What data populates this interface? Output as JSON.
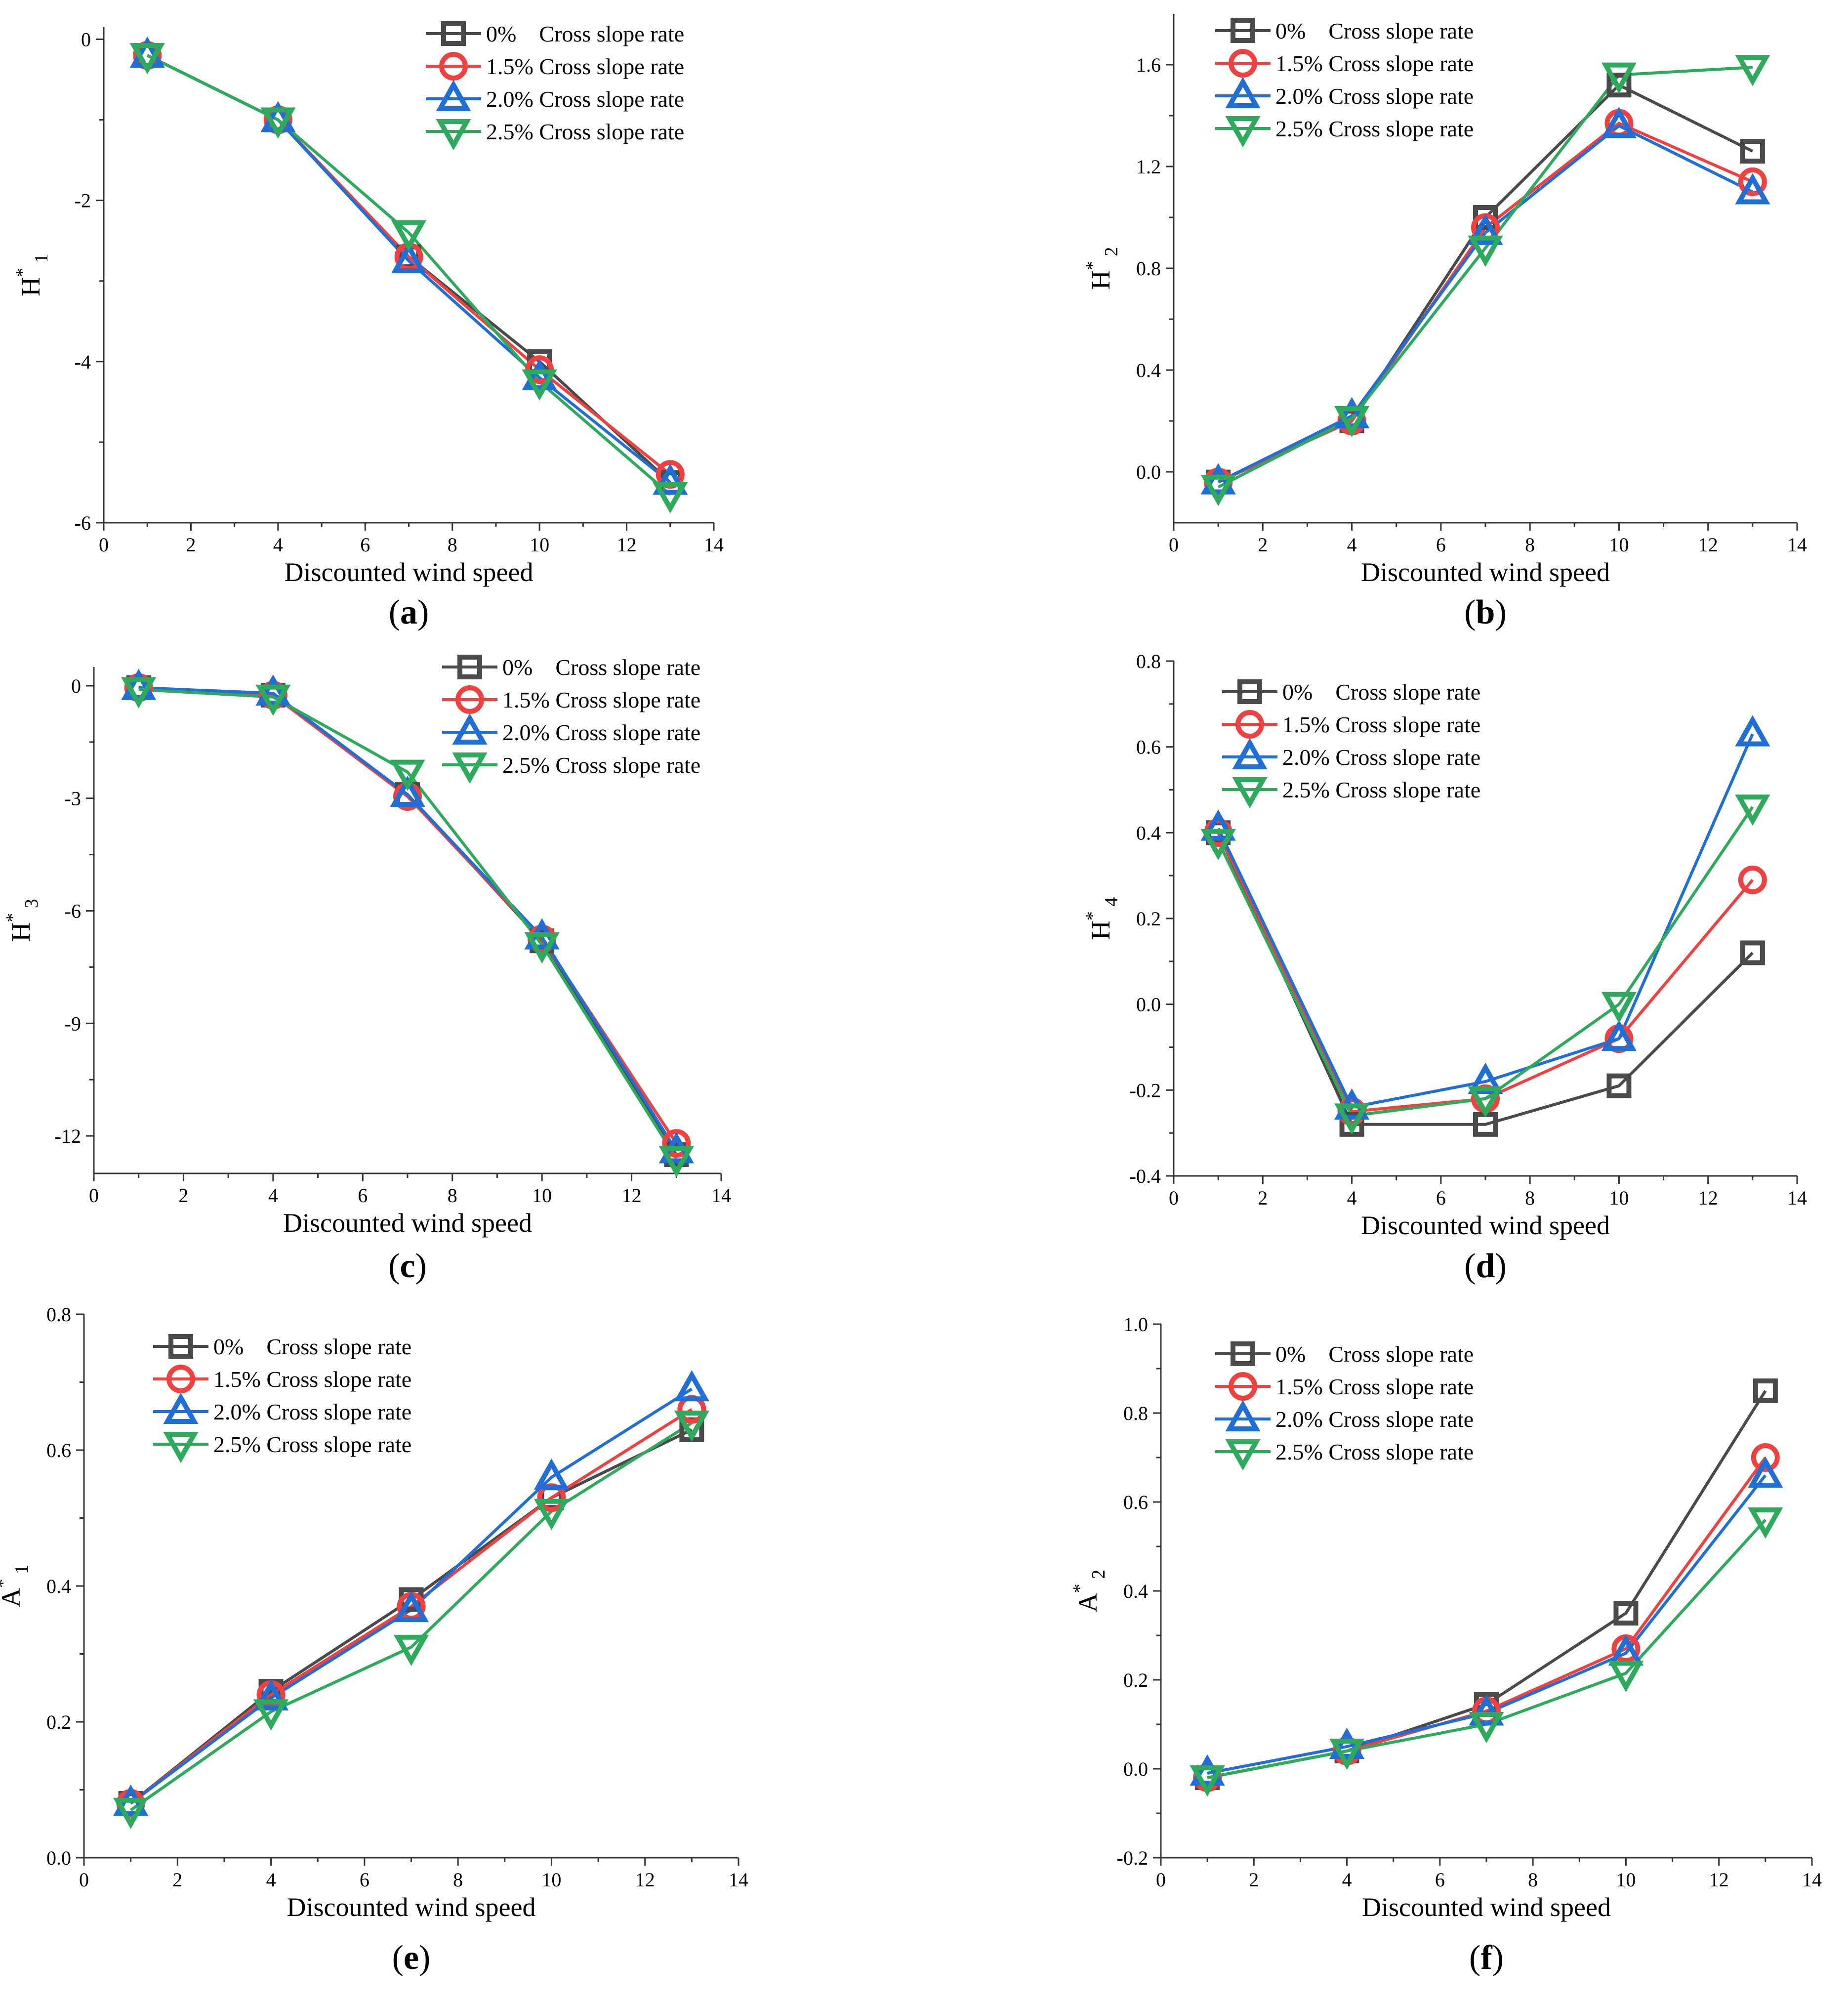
{
  "figure": {
    "series_styles": [
      {
        "name": "0%",
        "color": "#4a4a4a",
        "marker": "square"
      },
      {
        "name": "1.5%",
        "color": "#f04040",
        "marker": "circle"
      },
      {
        "name": "2.0%",
        "color": "#1f6fd6",
        "marker": "triangle-up"
      },
      {
        "name": "2.5%",
        "color": "#2eaa5c",
        "marker": "triangle-down"
      }
    ]
  },
  "chart_data": [
    {
      "type": "line",
      "caption_letter": "a",
      "xlabel": "Discounted wind speed",
      "ylabel_main": "H",
      "ylabel_sup": "*",
      "ylabel_sub": "1",
      "xlim": [
        0,
        14
      ],
      "ylim": [
        -6,
        0.15
      ],
      "xticks": [
        0,
        2,
        4,
        6,
        8,
        10,
        12,
        14
      ],
      "xtick_labels": [
        "0",
        "2",
        "4",
        "6",
        "8",
        "10",
        "12",
        "14"
      ],
      "yticks": [
        -6,
        -4,
        -2,
        0
      ],
      "ytick_labels": [
        "-6",
        "-4",
        "-2",
        "0"
      ],
      "legend": [
        "0%    Cross slope rate",
        "1.5% Cross slope rate",
        "2.0% Cross slope rate",
        "2.5% Cross slope rate"
      ],
      "x": [
        1,
        4,
        7,
        10,
        13
      ],
      "series": [
        {
          "name": "0%",
          "values": [
            -0.2,
            -1.0,
            -2.7,
            -4.0,
            -5.5
          ]
        },
        {
          "name": "1.5%",
          "values": [
            -0.2,
            -1.0,
            -2.7,
            -4.1,
            -5.4
          ]
        },
        {
          "name": "2.0%",
          "values": [
            -0.2,
            -1.0,
            -2.75,
            -4.2,
            -5.5
          ]
        },
        {
          "name": "2.5%",
          "values": [
            -0.2,
            -1.0,
            -2.4,
            -4.25,
            -5.65
          ]
        }
      ]
    },
    {
      "type": "line",
      "caption_letter": "b",
      "xlabel": "Discounted wind speed",
      "ylabel_main": "H",
      "ylabel_sup": "*",
      "ylabel_sub": "2",
      "xlim": [
        0,
        14
      ],
      "ylim": [
        -0.2,
        1.8
      ],
      "xticks": [
        0,
        2,
        4,
        6,
        8,
        10,
        12,
        14
      ],
      "xtick_labels": [
        "0",
        "2",
        "4",
        "6",
        "8",
        "10",
        "12",
        "14"
      ],
      "yticks": [
        0.0,
        0.4,
        0.8,
        1.2,
        1.6
      ],
      "ytick_labels": [
        "0.0",
        "0.4",
        "0.8",
        "1.2",
        "1.6"
      ],
      "legend": [
        "0%    Cross slope rate",
        "1.5% Cross slope rate",
        "2.0% Cross slope rate",
        "2.5% Cross slope rate"
      ],
      "x": [
        1,
        4,
        7,
        10,
        13
      ],
      "series": [
        {
          "name": "0%",
          "values": [
            -0.04,
            0.2,
            1.0,
            1.52,
            1.26
          ]
        },
        {
          "name": "1.5%",
          "values": [
            -0.04,
            0.2,
            0.96,
            1.37,
            1.14
          ]
        },
        {
          "name": "2.0%",
          "values": [
            -0.04,
            0.22,
            0.94,
            1.36,
            1.1
          ]
        },
        {
          "name": "2.5%",
          "values": [
            -0.06,
            0.21,
            0.88,
            1.56,
            1.59
          ]
        }
      ]
    },
    {
      "type": "line",
      "caption_letter": "c",
      "xlabel": "Discounted wind speed",
      "ylabel_main": "H",
      "ylabel_sup": "*",
      "ylabel_sub": "3",
      "xlim": [
        0,
        14
      ],
      "ylim": [
        -13,
        0.5
      ],
      "xticks": [
        0,
        2,
        4,
        6,
        8,
        10,
        12,
        14
      ],
      "xtick_labels": [
        "0",
        "2",
        "4",
        "6",
        "8",
        "10",
        "12",
        "14"
      ],
      "yticks": [
        -12,
        -9,
        -6,
        -3,
        0
      ],
      "ytick_labels": [
        "-12",
        "-9",
        "-6",
        "-3",
        "0"
      ],
      "legend": [
        "0%    Cross slope rate",
        "1.5% Cross slope rate",
        "2.0% Cross slope rate",
        "2.5% Cross slope rate"
      ],
      "x": [
        1,
        4,
        7,
        10,
        13
      ],
      "series": [
        {
          "name": "0%",
          "values": [
            -0.05,
            -0.25,
            -2.9,
            -6.8,
            -12.5
          ]
        },
        {
          "name": "1.5%",
          "values": [
            -0.05,
            -0.25,
            -2.95,
            -6.75,
            -12.2
          ]
        },
        {
          "name": "2.0%",
          "values": [
            -0.05,
            -0.2,
            -2.9,
            -6.7,
            -12.4
          ]
        },
        {
          "name": "2.5%",
          "values": [
            -0.1,
            -0.3,
            -2.3,
            -6.9,
            -12.6
          ]
        }
      ]
    },
    {
      "type": "line",
      "caption_letter": "d",
      "xlabel": "Discounted wind speed",
      "ylabel_main": "H",
      "ylabel_sup": "*",
      "ylabel_sub": "4",
      "xlim": [
        0,
        14
      ],
      "ylim": [
        -0.4,
        0.8
      ],
      "xticks": [
        0,
        2,
        4,
        6,
        8,
        10,
        12,
        14
      ],
      "xtick_labels": [
        "0",
        "2",
        "4",
        "6",
        "8",
        "10",
        "12",
        "14"
      ],
      "yticks": [
        -0.4,
        -0.2,
        0.0,
        0.2,
        0.4,
        0.6,
        0.8
      ],
      "ytick_labels": [
        "-0.4",
        "-0.2",
        "0.0",
        "0.2",
        "0.4",
        "0.6",
        "0.8"
      ],
      "legend": [
        "0%    Cross slope rate",
        "1.5% Cross slope rate",
        "2.0% Cross slope rate",
        "2.5% Cross slope rate"
      ],
      "x": [
        1,
        4,
        7,
        10,
        13
      ],
      "series": [
        {
          "name": "0%",
          "values": [
            0.4,
            -0.28,
            -0.28,
            -0.19,
            0.12
          ]
        },
        {
          "name": "1.5%",
          "values": [
            0.4,
            -0.25,
            -0.22,
            -0.08,
            0.29
          ]
        },
        {
          "name": "2.0%",
          "values": [
            0.41,
            -0.24,
            -0.18,
            -0.08,
            0.63
          ]
        },
        {
          "name": "2.5%",
          "values": [
            0.38,
            -0.26,
            -0.22,
            0.0,
            0.46
          ]
        }
      ]
    },
    {
      "type": "line",
      "caption_letter": "e",
      "xlabel": "Discounted wind speed",
      "ylabel_main": "A",
      "ylabel_sup": "*",
      "ylabel_sub": "1",
      "xlim": [
        0,
        14
      ],
      "ylim": [
        0.0,
        0.8
      ],
      "xticks": [
        0,
        2,
        4,
        6,
        8,
        10,
        12,
        14
      ],
      "xtick_labels": [
        "0",
        "2",
        "4",
        "6",
        "8",
        "10",
        "12",
        "14"
      ],
      "yticks": [
        0.0,
        0.2,
        0.4,
        0.6,
        0.8
      ],
      "ytick_labels": [
        "0.0",
        "0.2",
        "0.4",
        "0.6",
        "0.8"
      ],
      "legend": [
        "0%    Cross slope rate",
        "1.5% Cross slope rate",
        "2.0% Cross slope rate",
        "2.5% Cross slope rate"
      ],
      "x": [
        1,
        4,
        7,
        10,
        13
      ],
      "series": [
        {
          "name": "0%",
          "values": [
            0.08,
            0.245,
            0.38,
            0.53,
            0.63
          ]
        },
        {
          "name": "1.5%",
          "values": [
            0.08,
            0.24,
            0.37,
            0.53,
            0.66
          ]
        },
        {
          "name": "2.0%",
          "values": [
            0.08,
            0.235,
            0.365,
            0.56,
            0.69
          ]
        },
        {
          "name": "2.5%",
          "values": [
            0.07,
            0.215,
            0.31,
            0.51,
            0.64
          ]
        }
      ]
    },
    {
      "type": "line",
      "caption_letter": "f",
      "xlabel": "Discounted wind speed",
      "ylabel_main": "A",
      "ylabel_sup": "*",
      "ylabel_sub": "2",
      "xlim": [
        0,
        14
      ],
      "ylim": [
        -0.2,
        1.0
      ],
      "xticks": [
        0,
        2,
        4,
        6,
        8,
        10,
        12,
        14
      ],
      "xtick_labels": [
        "0",
        "2",
        "4",
        "6",
        "8",
        "10",
        "12",
        "14"
      ],
      "yticks": [
        -0.2,
        0.0,
        0.2,
        0.4,
        0.6,
        0.8,
        1.0
      ],
      "ytick_labels": [
        "-0.2",
        "0.0",
        "0.2",
        "0.4",
        "0.6",
        "0.8",
        "1.0"
      ],
      "legend": [
        "0%    Cross slope rate",
        "1.5% Cross slope rate",
        "2.0% Cross slope rate",
        "2.5% Cross slope rate"
      ],
      "x": [
        1,
        4,
        7,
        10,
        13
      ],
      "series": [
        {
          "name": "0%",
          "values": [
            -0.02,
            0.04,
            0.145,
            0.35,
            0.85
          ]
        },
        {
          "name": "1.5%",
          "values": [
            -0.02,
            0.04,
            0.13,
            0.27,
            0.7
          ]
        },
        {
          "name": "2.0%",
          "values": [
            -0.01,
            0.05,
            0.125,
            0.26,
            0.66
          ]
        },
        {
          "name": "2.5%",
          "values": [
            -0.02,
            0.04,
            0.1,
            0.215,
            0.56
          ]
        }
      ]
    }
  ]
}
